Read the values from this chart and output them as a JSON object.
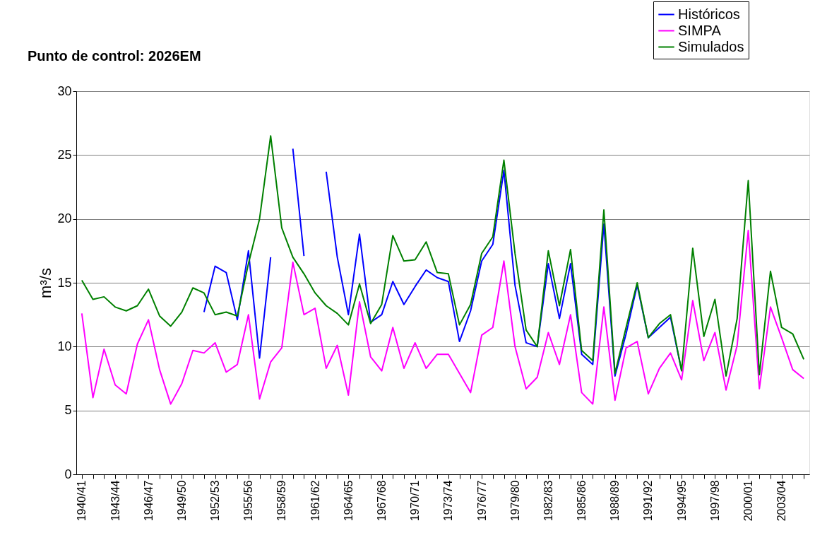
{
  "chart_data": {
    "type": "line",
    "title": "Punto de control: 2026EM",
    "ylabel": "m³/s",
    "categories": [
      "1940/41",
      null,
      null,
      "1943/44",
      null,
      null,
      "1946/47",
      null,
      null,
      "1949/50",
      null,
      null,
      "1952/53",
      null,
      null,
      "1955/56",
      null,
      null,
      "1958/59",
      null,
      null,
      "1961/62",
      null,
      null,
      "1964/65",
      null,
      null,
      "1967/68",
      null,
      null,
      "1970/71",
      null,
      null,
      "1973/74",
      null,
      null,
      "1976/77",
      null,
      null,
      "1979/80",
      null,
      null,
      "1982/83",
      null,
      null,
      "1985/86",
      null,
      null,
      "1988/89",
      null,
      null,
      "1991/92",
      null,
      null,
      "1994/95",
      null,
      null,
      "1997/98",
      null,
      null,
      "2000/01",
      null,
      null,
      "2003/04",
      null,
      null
    ],
    "series": [
      {
        "name": "Históricos",
        "color": "#0000ff",
        "values": [
          null,
          null,
          null,
          null,
          null,
          null,
          null,
          null,
          null,
          null,
          null,
          12.7,
          16.3,
          15.8,
          12.1,
          17.5,
          9.1,
          17.0,
          null,
          25.5,
          17.1,
          null,
          23.7,
          17.0,
          12.5,
          18.8,
          11.9,
          12.5,
          15.1,
          13.3,
          14.7,
          16.0,
          15.4,
          15.1,
          10.4,
          12.8,
          16.7,
          18.0,
          23.8,
          14.8,
          10.3,
          10.0,
          16.5,
          12.2,
          16.5,
          9.4,
          8.6,
          19.6,
          7.7,
          11.0,
          14.8,
          10.7,
          11.5,
          12.3,
          8.1,
          null,
          null,
          null,
          null,
          null,
          null,
          null,
          null,
          null,
          null,
          null
        ]
      },
      {
        "name": "SIMPA",
        "color": "#ff00ff",
        "values": [
          12.6,
          6.0,
          9.8,
          7.0,
          6.3,
          10.2,
          12.1,
          8.2,
          5.5,
          7.1,
          9.7,
          9.5,
          10.3,
          8.0,
          8.6,
          12.5,
          5.9,
          8.8,
          9.9,
          16.6,
          12.5,
          13.0,
          8.3,
          10.1,
          6.2,
          13.5,
          9.2,
          8.1,
          11.5,
          8.3,
          10.3,
          8.3,
          9.4,
          9.4,
          7.9,
          6.4,
          10.9,
          11.5,
          16.7,
          10.0,
          6.7,
          7.6,
          11.1,
          8.6,
          12.5,
          6.4,
          5.5,
          13.1,
          5.8,
          9.9,
          10.4,
          6.3,
          8.3,
          9.5,
          7.4,
          13.6,
          8.9,
          11.1,
          6.6,
          10.1,
          19.1,
          6.7,
          13.1,
          10.7,
          8.2,
          7.5
        ]
      },
      {
        "name": "Simulados",
        "color": "#008000",
        "values": [
          15.2,
          13.7,
          13.9,
          13.1,
          12.8,
          13.2,
          14.5,
          12.4,
          11.6,
          12.7,
          14.6,
          14.2,
          12.5,
          12.7,
          12.4,
          16.5,
          20.0,
          26.5,
          19.3,
          17.0,
          15.7,
          14.2,
          13.2,
          12.6,
          11.7,
          14.9,
          11.8,
          13.3,
          18.7,
          16.7,
          16.8,
          18.2,
          15.8,
          15.7,
          11.7,
          13.3,
          17.3,
          18.6,
          24.6,
          17.3,
          11.3,
          10.0,
          17.5,
          13.2,
          17.6,
          9.7,
          8.9,
          20.7,
          7.9,
          11.5,
          15.0,
          10.7,
          11.8,
          12.5,
          8.1,
          17.7,
          10.8,
          13.7,
          7.7,
          12.2,
          23.0,
          7.8,
          15.9,
          11.5,
          11.0,
          9.0
        ]
      }
    ],
    "ylim": [
      0,
      30
    ],
    "yticks": [
      0,
      5,
      10,
      15,
      20,
      25,
      30
    ],
    "grid": "y",
    "legend": "top right",
    "marker": "none",
    "line_style": "solid"
  }
}
